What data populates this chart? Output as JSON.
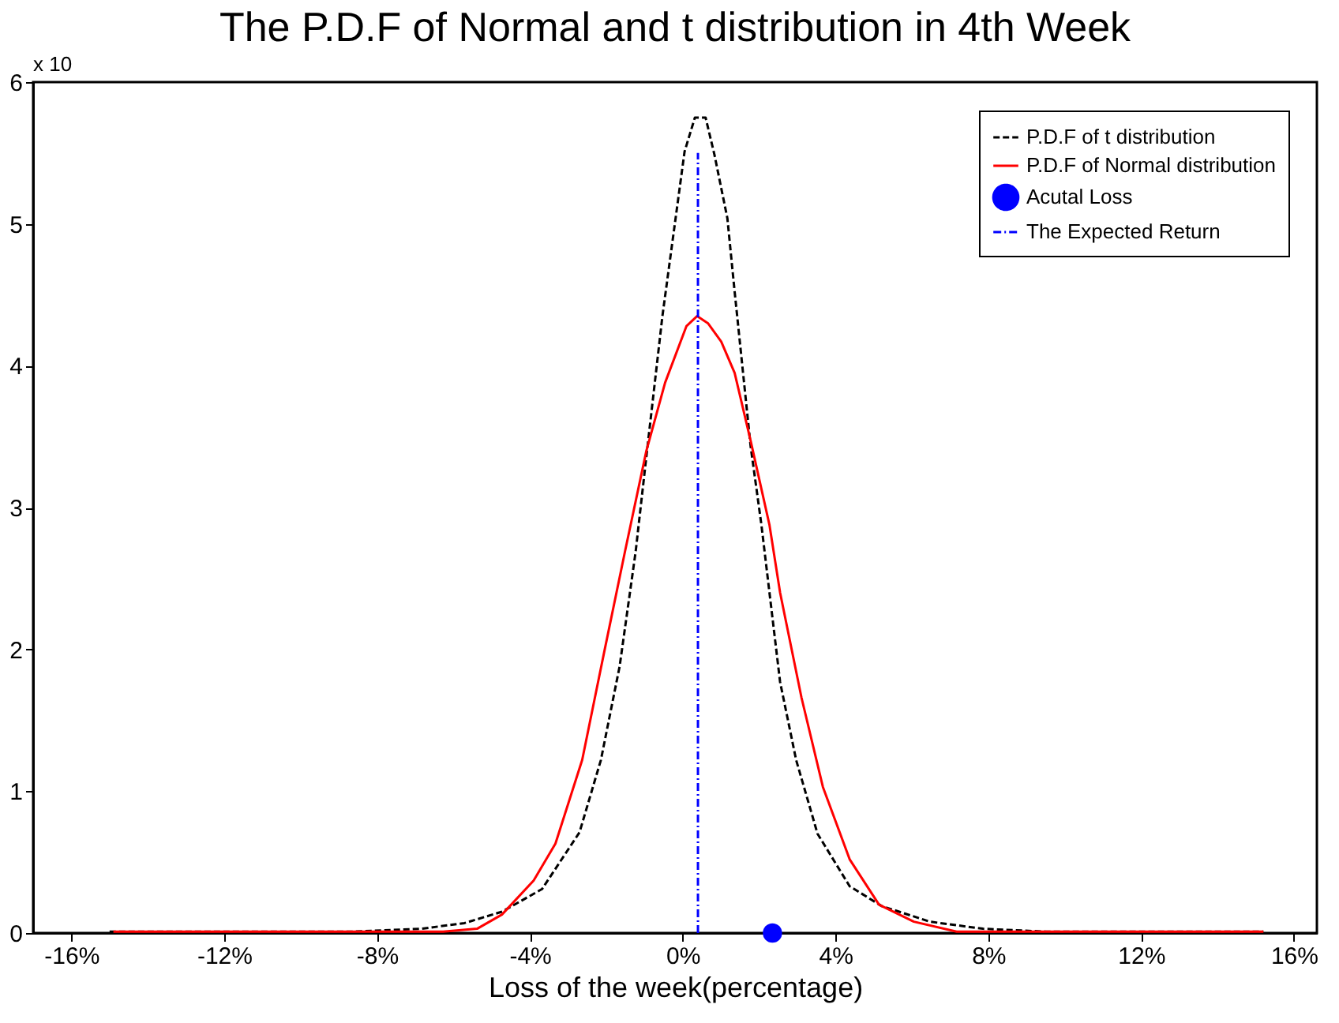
{
  "chart_data": {
    "type": "line",
    "title": "The P.D.F of Normal and t distribution in 4th Week",
    "xlabel": "Loss of the week(percentage)",
    "annotations": [
      "x 10"
    ],
    "xlim": [
      -17,
      16.6
    ],
    "ylim": [
      0,
      6
    ],
    "xticks": [
      {
        "value": -16,
        "label": "-16%"
      },
      {
        "value": -12,
        "label": "-12%"
      },
      {
        "value": -8,
        "label": "-8%"
      },
      {
        "value": -4,
        "label": "-4%"
      },
      {
        "value": 0,
        "label": "0%"
      },
      {
        "value": 4,
        "label": "4%"
      },
      {
        "value": 8,
        "label": "8%"
      },
      {
        "value": 12,
        "label": "12%"
      },
      {
        "value": 16,
        "label": "16%"
      }
    ],
    "yticks": [
      0,
      1,
      2,
      3,
      4,
      5,
      6
    ],
    "grid": false,
    "legend": "top right",
    "series": [
      {
        "name": "P.D.F of t distribution",
        "color": "#000000",
        "line_style": "dashed",
        "marker": "none",
        "x": [
          -15,
          -8.66,
          -6.84,
          -5.71,
          -4.73,
          -3.68,
          -2.7,
          -2.14,
          -1.65,
          -1.23,
          -0.95,
          -0.53,
          0.05,
          0.32,
          0.6,
          0.83,
          1.17,
          1.35,
          1.78,
          2.06,
          2.55,
          2.97,
          3.53,
          4.37,
          5.21,
          6.47,
          7.86,
          9.5,
          15.2
        ],
        "values": [
          0.01,
          0.01,
          0.03,
          0.07,
          0.15,
          0.31,
          0.71,
          1.22,
          1.88,
          2.69,
          3.36,
          4.35,
          5.51,
          5.75,
          5.75,
          5.49,
          5.04,
          4.55,
          3.43,
          2.88,
          1.77,
          1.22,
          0.7,
          0.33,
          0.19,
          0.08,
          0.03,
          0.01,
          0.01
        ]
      },
      {
        "name": "P.D.F of Normal distribution",
        "color": "#ff0000",
        "line_style": "solid",
        "marker": "none",
        "x": [
          -14.9,
          -8.66,
          -6.27,
          -5.38,
          -4.73,
          -3.9,
          -3.33,
          -2.63,
          -2.07,
          -1.51,
          -0.95,
          -0.46,
          0.1,
          0.38,
          0.66,
          1.01,
          1.36,
          1.78,
          2.27,
          2.55,
          3.11,
          3.67,
          4.37,
          5.14,
          6.05,
          7.17,
          15.2
        ],
        "values": [
          0.01,
          0.01,
          0.01,
          0.03,
          0.13,
          0.37,
          0.63,
          1.22,
          1.96,
          2.69,
          3.4,
          3.88,
          4.28,
          4.35,
          4.3,
          4.17,
          3.95,
          3.47,
          2.88,
          2.4,
          1.66,
          1.03,
          0.52,
          0.2,
          0.08,
          0.01,
          0.01
        ]
      },
      {
        "name": "Acutal Loss",
        "type": "scatter",
        "color": "#0000ff",
        "marker": "circle",
        "x": [
          2.35
        ],
        "values": [
          0
        ]
      },
      {
        "name": "The Expected Return",
        "color": "#0000ff",
        "line_style": "dotted",
        "marker": "none",
        "x": [
          0.4,
          0.4
        ],
        "values": [
          0,
          5.5
        ]
      }
    ]
  }
}
